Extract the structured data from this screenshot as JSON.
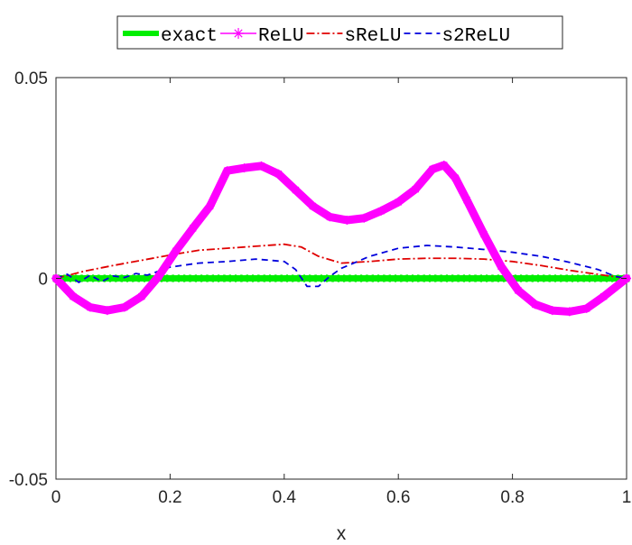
{
  "chart_data": {
    "type": "line",
    "xlabel": "x",
    "ylabel": "",
    "xlim": [
      0,
      1
    ],
    "ylim": [
      -0.05,
      0.05
    ],
    "xticks": [
      "0",
      "0.2",
      "0.4",
      "0.6",
      "0.8",
      "1"
    ],
    "yticks": [
      "-0.05",
      "0",
      "0.05"
    ],
    "grid": false,
    "legend_position": "top",
    "series": [
      {
        "name": "exact",
        "color": "#00ee00",
        "style": "solid-thick",
        "x": [
          0,
          0.1,
          0.2,
          0.3,
          0.4,
          0.5,
          0.6,
          0.7,
          0.8,
          0.9,
          1
        ],
        "values": [
          0,
          0,
          0,
          0,
          0,
          0,
          0,
          0,
          0,
          0,
          0
        ]
      },
      {
        "name": "ReLU",
        "color": "#ff00ff",
        "style": "star-marker",
        "x": [
          0,
          0.03,
          0.06,
          0.09,
          0.12,
          0.15,
          0.18,
          0.21,
          0.24,
          0.27,
          0.3,
          0.33,
          0.36,
          0.39,
          0.42,
          0.45,
          0.48,
          0.51,
          0.54,
          0.57,
          0.6,
          0.63,
          0.66,
          0.68,
          0.7,
          0.72,
          0.75,
          0.78,
          0.81,
          0.84,
          0.87,
          0.9,
          0.93,
          0.96,
          1
        ],
        "values": [
          0,
          -0.0045,
          -0.0072,
          -0.008,
          -0.0072,
          -0.0045,
          0.0005,
          0.0068,
          0.0125,
          0.018,
          0.0268,
          0.0275,
          0.028,
          0.026,
          0.022,
          0.018,
          0.0153,
          0.0145,
          0.015,
          0.0168,
          0.019,
          0.0222,
          0.0272,
          0.0282,
          0.025,
          0.0195,
          0.011,
          0.003,
          -0.003,
          -0.0065,
          -0.008,
          -0.0083,
          -0.0075,
          -0.0045,
          0
        ]
      },
      {
        "name": "sReLU",
        "color": "#e00000",
        "style": "dash-dot",
        "x": [
          0,
          0.05,
          0.1,
          0.15,
          0.2,
          0.25,
          0.3,
          0.35,
          0.4,
          0.43,
          0.46,
          0.5,
          0.55,
          0.6,
          0.65,
          0.7,
          0.75,
          0.8,
          0.85,
          0.9,
          0.95,
          1
        ],
        "values": [
          0,
          0.0018,
          0.0032,
          0.0045,
          0.0058,
          0.007,
          0.0075,
          0.008,
          0.0085,
          0.0078,
          0.0055,
          0.0038,
          0.0042,
          0.0048,
          0.005,
          0.005,
          0.0048,
          0.0042,
          0.0032,
          0.002,
          0.001,
          0
        ]
      },
      {
        "name": "s2ReLU",
        "color": "#0000dd",
        "style": "dashed",
        "x": [
          0,
          0.02,
          0.04,
          0.06,
          0.08,
          0.1,
          0.12,
          0.14,
          0.16,
          0.2,
          0.25,
          0.3,
          0.35,
          0.4,
          0.42,
          0.44,
          0.46,
          0.48,
          0.5,
          0.55,
          0.6,
          0.65,
          0.7,
          0.75,
          0.8,
          0.85,
          0.9,
          0.95,
          0.98,
          1
        ],
        "values": [
          0,
          0.001,
          -0.001,
          0.0008,
          -0.0008,
          0.0006,
          0.0002,
          0.0012,
          0.0008,
          0.0028,
          0.0038,
          0.0042,
          0.0048,
          0.0042,
          0.0022,
          -0.002,
          -0.002,
          0.0005,
          0.0025,
          0.0055,
          0.0075,
          0.0082,
          0.0078,
          0.0072,
          0.0065,
          0.0055,
          0.004,
          0.0022,
          0.0005,
          0
        ]
      }
    ]
  }
}
